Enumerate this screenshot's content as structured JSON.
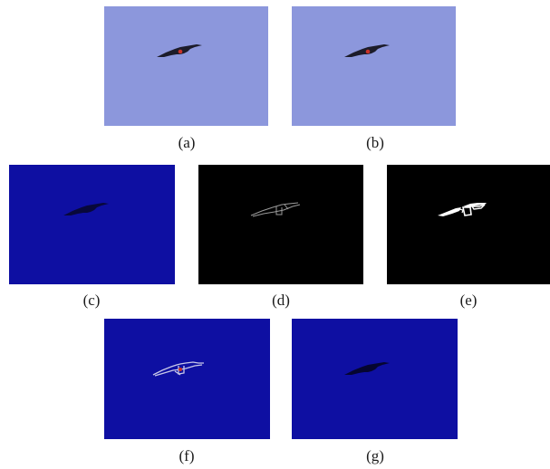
{
  "figure": {
    "panels": [
      {
        "id": "a",
        "caption": "(a)"
      },
      {
        "id": "b",
        "caption": "(b)"
      },
      {
        "id": "c",
        "caption": "(c)"
      },
      {
        "id": "d",
        "caption": "(d)"
      },
      {
        "id": "e",
        "caption": "(e)"
      },
      {
        "id": "f",
        "caption": "(f)"
      },
      {
        "id": "g",
        "caption": "(g)"
      }
    ]
  },
  "colors": {
    "sky": "#8c97dc",
    "blue_channel": "#0e0fa2",
    "black": "#000000",
    "bird_dark": "#1c1c2a",
    "bird_red": "#c8322a",
    "edge_white": "#ffffff",
    "edge_gray": "#9a9a9a"
  }
}
